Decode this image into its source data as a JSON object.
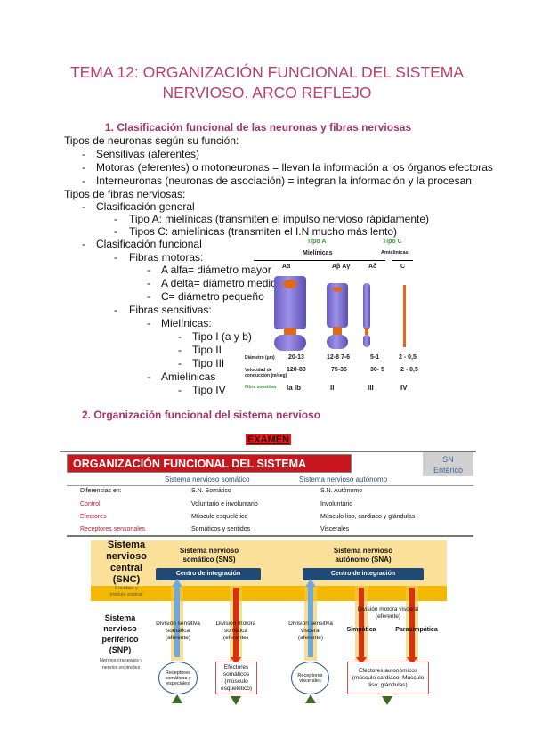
{
  "title": {
    "line1": "TEMA 12: ORGANIZACIÓN FUNCIONAL DEL SISTEMA",
    "line2": "NERVIOSO. ARCO REFLEJO"
  },
  "section1": {
    "heading": "1.   Clasificación funcional de las neuronas y fibras nerviosas",
    "lines": [
      "Tipos de neuronas según su función:",
      "Sensitivas (aferentes)",
      "Motoras (eferentes) o motoneuronas = llevan la información a los órganos efectoras",
      "Interneuronas (neuronas de asociación) = integran la información y la procesan",
      "Tipos de fibras nerviosas:",
      "Clasificación general",
      "Tipo A: mielínicas (transmiten el impulso nervioso rápidamente)",
      "Tipos C:  amielínicas (transmiten el I.N mucho más lento)",
      "Clasificación funcional",
      "Fibras motoras:",
      "A alfa= diámetro mayor",
      "A delta= diámetro medio",
      "C= diámetro pequeño",
      "Fibras sensitivas:",
      "Mielínicas:",
      "Tipo I (a y b)",
      "Tipo II",
      "Tipo III",
      "Amielínicas",
      "Tipo IV"
    ]
  },
  "fiber_figure": {
    "tipo_a": "Tipo A",
    "mielinicas": "Mielínicas",
    "tipo_c": "Tipo C",
    "amielinicas": "Amielínicas",
    "cols": [
      "Aα",
      "Aβ   Aγ",
      "Aδ",
      "C"
    ],
    "diam_label": "Diámetro (µm)",
    "diam": [
      "20-13",
      "12-8     7-6",
      "5-1",
      "2 - 0,5"
    ],
    "vel_label": "Velocidad de conducción (m/seg)",
    "vel": [
      "120-80",
      "75-35",
      "30- 5",
      "2 - 0,5"
    ],
    "sens_label": "Fibra sensitiva",
    "sens": [
      "Ia   Ib",
      "II",
      "III",
      "IV"
    ],
    "colors": {
      "myelin": "#8a7fe0",
      "axon": "#e06a1a"
    }
  },
  "section2": {
    "heading": "2.   Organización funcional del sistema nervioso",
    "exam": "EXAMEN"
  },
  "diagram": {
    "banner": "ORGANIZACIÓN FUNCIONAL DEL SISTEMA NERVIOSO",
    "enterico": [
      "SN",
      "Entérico"
    ],
    "col1": "Sistema nervioso somático",
    "col2": "Sistema nervioso autónomo",
    "table": {
      "header": [
        "Diferencias en:",
        "S.N. Somático",
        "S.N. Autónomo"
      ],
      "rows": [
        [
          "Control",
          "Voluntario e involuntario",
          "Involuntario"
        ],
        [
          "Efectores",
          "Músculo esquelético",
          "Músculo liso, cardiaco y glándulas"
        ],
        [
          "Receptores sensonales",
          "Somáticos y sentidos",
          "Viscerales"
        ]
      ]
    },
    "snc": [
      "Sistema",
      "nervioso",
      "central",
      "(SNC)"
    ],
    "snc_sub": [
      "Encéfalo y",
      "médula espinal"
    ],
    "sns": [
      "Sistema nervioso",
      "somático (SNS)"
    ],
    "sna": [
      "Sistema nervioso",
      "autónomo (SNA)"
    ],
    "centro": "Centro de integración",
    "snp": [
      "Sistema",
      "nervioso",
      "periférico",
      "(SNP)"
    ],
    "snp_sub": [
      "Nervios craneales y",
      "nervios espinales"
    ],
    "div1": [
      "División sensitiva",
      "somática",
      "(aferente)"
    ],
    "div2": [
      "División motora",
      "somática",
      "(eferente)"
    ],
    "div3": [
      "División sensitiva",
      "visceral",
      "(aferente)"
    ],
    "div4": [
      "División motora visceral",
      "(eferente)"
    ],
    "simpatica": "Simpática",
    "parasimpatica": "Parasimpática",
    "rec1": "Receptores somáticos y especiales",
    "ef1": "Efectores somáticos (músculo esquelético)",
    "rec2": "Receptores viscerales",
    "ef2": "Efectores autonómicos (músculo cardiaco; Músculo liso; glándulas)"
  }
}
